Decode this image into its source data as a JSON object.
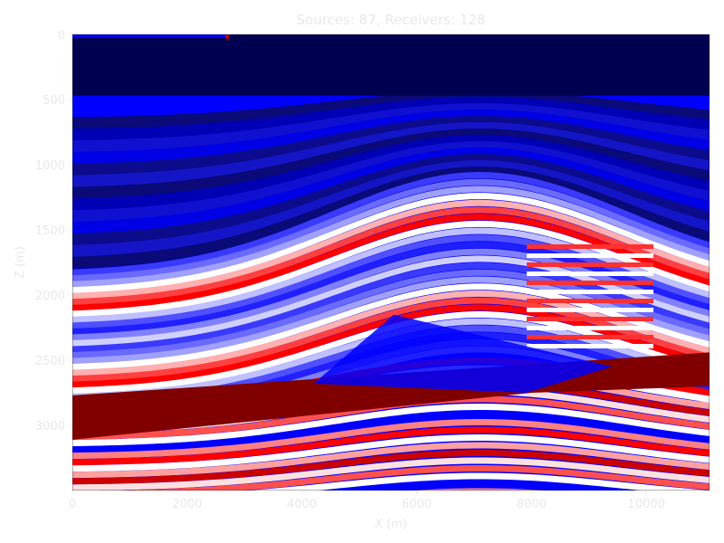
{
  "chart_data": {
    "type": "heatmap",
    "title": "Sources: 87, Receivers: 128",
    "xlabel": "X (m)",
    "ylabel": "Z (m)",
    "xlim": [
      0,
      11100
    ],
    "ylim": [
      3500,
      0
    ],
    "xticks": [
      0,
      2000,
      4000,
      6000,
      8000,
      10000
    ],
    "yticks": [
      0,
      500,
      1000,
      1500,
      2000,
      2500,
      3000
    ],
    "colormap": "seismic",
    "water_depth": 470,
    "markers": [
      {
        "type": "source",
        "x": 2700,
        "z": 5,
        "color": "#cc0000"
      }
    ],
    "colors": {
      "deep_blue": "#000050",
      "blue": "#0000ff",
      "white": "#ffffff",
      "red": "#ff0000",
      "dark_red": "#800000"
    }
  }
}
